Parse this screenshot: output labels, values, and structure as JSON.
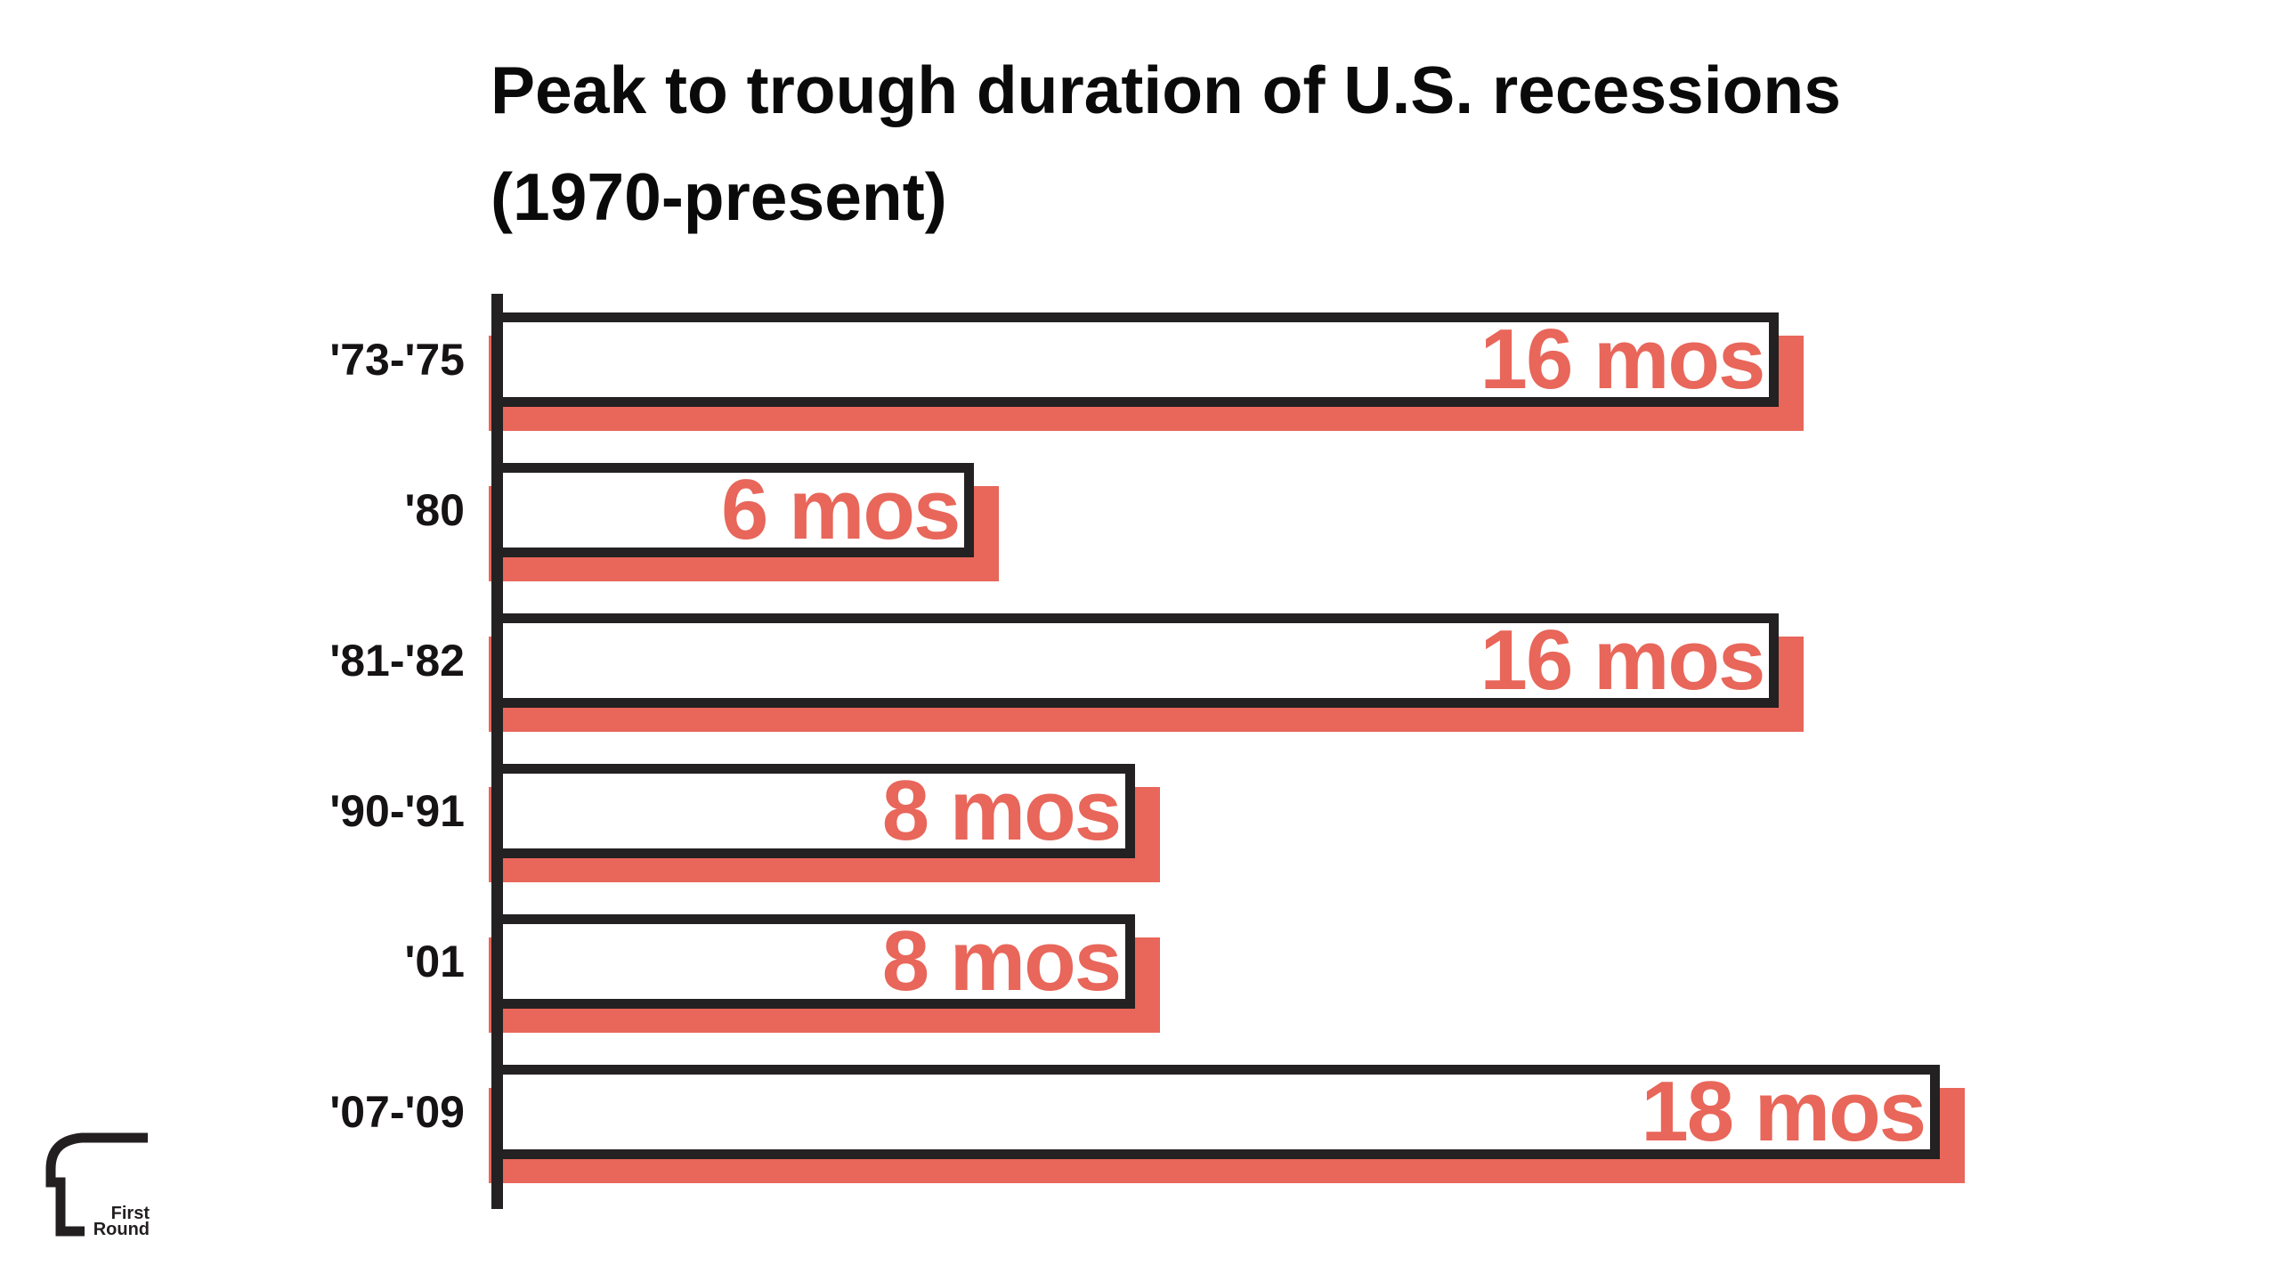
{
  "title": {
    "line1": "Peak to trough duration of U.S. recessions",
    "line2": "(1970-present)"
  },
  "chart_data": {
    "type": "bar",
    "orientation": "horizontal",
    "title": "Peak to trough duration of U.S. recessions (1970-present)",
    "xlabel": "",
    "ylabel": "",
    "unit": "months",
    "categories": [
      "'73-'75",
      "'80",
      "'81-'82",
      "'90-'91",
      "'01",
      "'07-'09"
    ],
    "values": [
      16,
      6,
      16,
      8,
      8,
      18
    ],
    "value_labels": [
      "16 mos",
      "6 mos",
      "16 mos",
      "8 mos",
      "8 mos",
      "18 mos"
    ],
    "xlim": [
      0,
      18
    ],
    "grid": false,
    "legend": false,
    "bar_fill_color": "#ffffff",
    "bar_border_color": "#242122",
    "shadow_color": "#e8665a",
    "value_label_color": "#e8665a",
    "category_label_color": "#161314"
  },
  "logo": {
    "line1": "First",
    "line2": "Round"
  }
}
